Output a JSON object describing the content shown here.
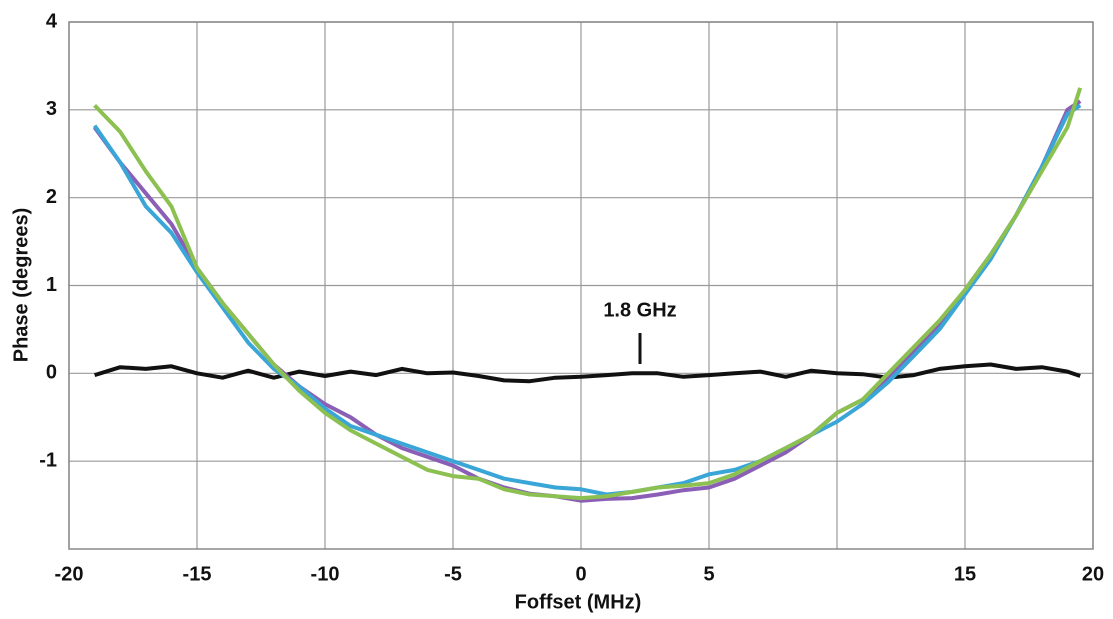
{
  "chart_data": {
    "type": "line",
    "x_label": "Foffset (MHz)",
    "y_label": "Phase (degrees)",
    "annotation": "1.8 GHz",
    "xlim": [
      -20,
      20
    ],
    "ylim": [
      -2,
      4
    ],
    "xticks": [
      -20,
      -15,
      -10,
      -5,
      0,
      5,
      {
        "value": 10,
        "label": null
      },
      15,
      20
    ],
    "yticks": [
      -1,
      0,
      1,
      2,
      3,
      4
    ],
    "grid": true,
    "x": [
      -19,
      -18,
      -17,
      -16,
      -15,
      -14,
      -13,
      -12,
      -11,
      -10,
      -9,
      -8,
      -7,
      -6,
      -5,
      -4,
      -3,
      -2,
      -1,
      0,
      1,
      2,
      3,
      4,
      5,
      6,
      7,
      8,
      9,
      10,
      11,
      12,
      13,
      14,
      15,
      16,
      17,
      18,
      19,
      19.5
    ],
    "series": [
      {
        "color": "#111111",
        "values": [
          -0.02,
          0.07,
          0.05,
          0.08,
          0.0,
          -0.05,
          0.03,
          -0.05,
          0.02,
          -0.03,
          0.02,
          -0.02,
          0.05,
          0.0,
          0.01,
          -0.03,
          -0.08,
          -0.09,
          -0.05,
          -0.04,
          -0.02,
          0.0,
          0.0,
          -0.04,
          -0.02,
          0.0,
          0.02,
          -0.04,
          0.03,
          0.0,
          -0.01,
          -0.05,
          -0.02,
          0.05,
          0.08,
          0.1,
          0.05,
          0.07,
          0.02,
          -0.03
        ]
      },
      {
        "color": "#8a5fb5",
        "values": [
          2.8,
          2.4,
          2.05,
          1.7,
          1.2,
          0.8,
          0.45,
          0.1,
          -0.15,
          -0.35,
          -0.5,
          -0.7,
          -0.85,
          -0.95,
          -1.05,
          -1.2,
          -1.3,
          -1.37,
          -1.4,
          -1.45,
          -1.43,
          -1.42,
          -1.38,
          -1.33,
          -1.3,
          -1.2,
          -1.05,
          -0.9,
          -0.7,
          -0.45,
          -0.3,
          -0.05,
          0.25,
          0.55,
          0.95,
          1.35,
          1.8,
          2.35,
          3.0,
          3.1
        ]
      },
      {
        "color": "#3aa6d8",
        "values": [
          2.82,
          2.4,
          1.9,
          1.6,
          1.15,
          0.75,
          0.35,
          0.05,
          -0.15,
          -0.4,
          -0.6,
          -0.7,
          -0.8,
          -0.9,
          -1.0,
          -1.1,
          -1.2,
          -1.25,
          -1.3,
          -1.32,
          -1.38,
          -1.35,
          -1.3,
          -1.25,
          -1.15,
          -1.1,
          -1.0,
          -0.85,
          -0.7,
          -0.55,
          -0.35,
          -0.1,
          0.2,
          0.5,
          0.9,
          1.3,
          1.8,
          2.35,
          2.95,
          3.05
        ]
      },
      {
        "color": "#8cc152",
        "values": [
          3.05,
          2.75,
          2.3,
          1.9,
          1.2,
          0.8,
          0.45,
          0.1,
          -0.2,
          -0.45,
          -0.65,
          -0.8,
          -0.95,
          -1.1,
          -1.17,
          -1.2,
          -1.32,
          -1.38,
          -1.4,
          -1.42,
          -1.4,
          -1.35,
          -1.3,
          -1.28,
          -1.25,
          -1.15,
          -1.0,
          -0.85,
          -0.7,
          -0.45,
          -0.3,
          0.0,
          0.3,
          0.6,
          0.95,
          1.35,
          1.8,
          2.3,
          2.8,
          3.25
        ]
      }
    ]
  }
}
